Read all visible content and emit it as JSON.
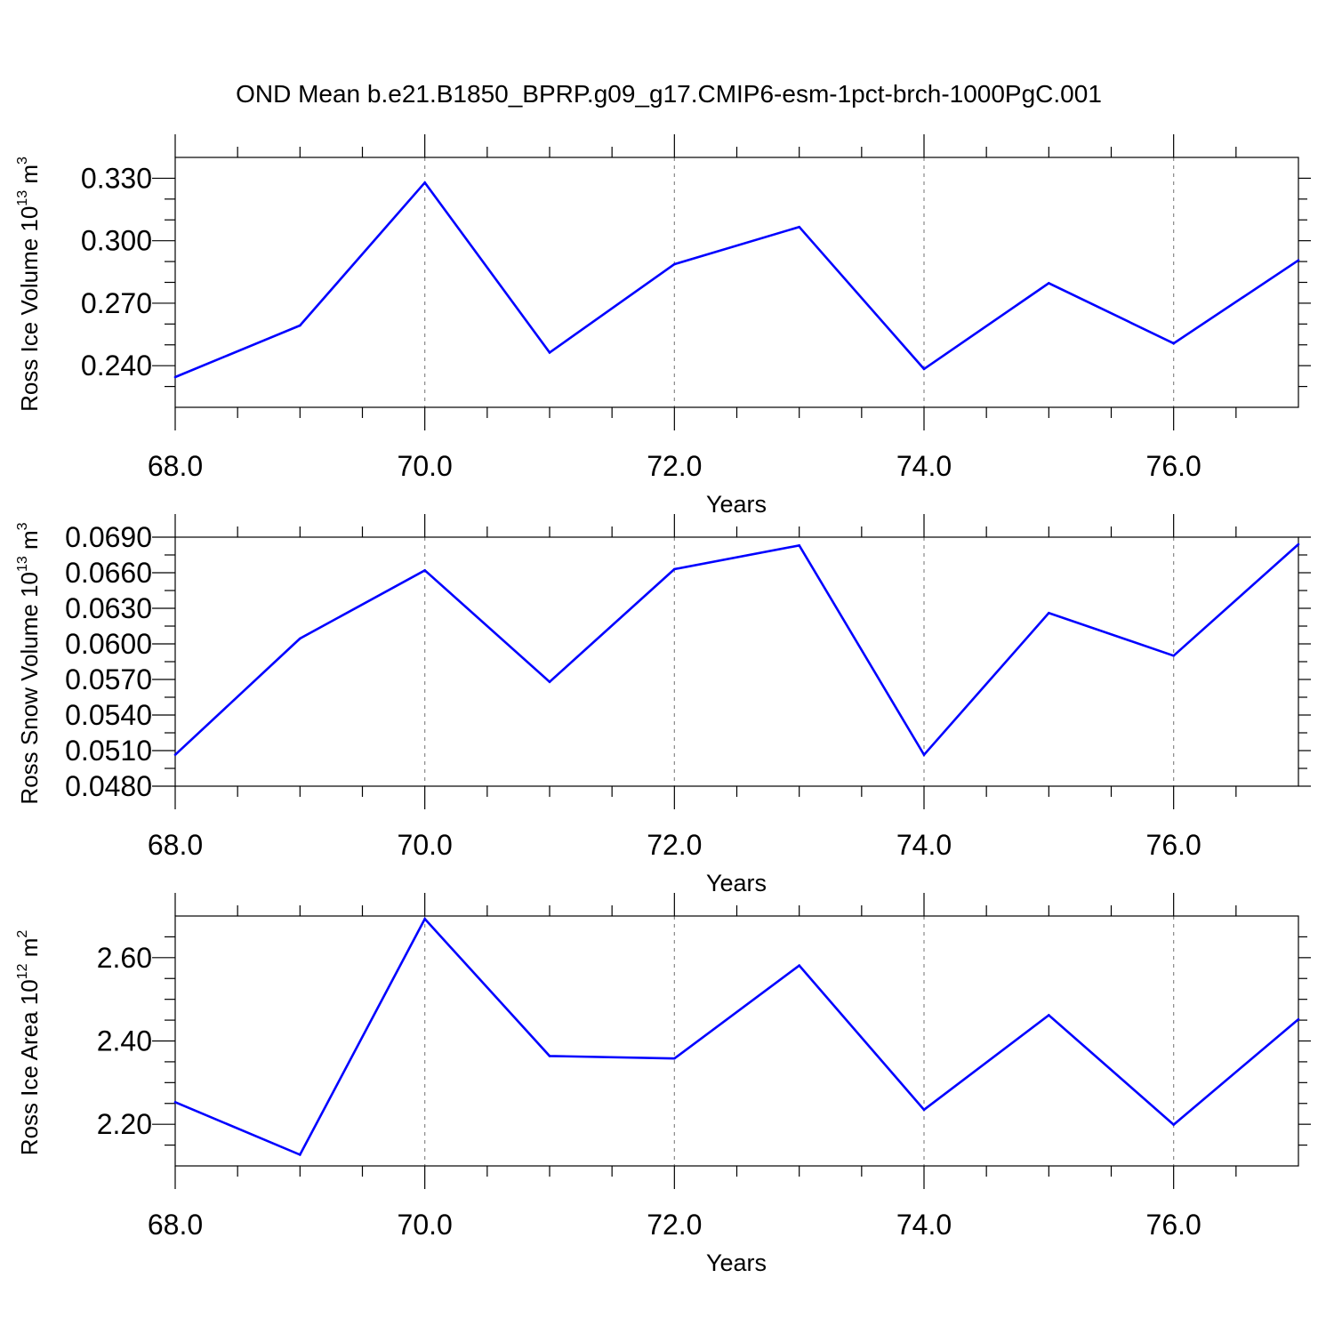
{
  "title": "OND Mean b.e21.B1850_BPRP.g09_g17.CMIP6-esm-1pct-brch-1000PgC.001",
  "colors": {
    "series": "#0000ff",
    "axis": "#000000",
    "grid": "#888888"
  },
  "chart_data": [
    {
      "type": "line",
      "ylabel": "Ross Ice Volume 10",
      "ylabel_exp": "13",
      "ylabel_unit": " m",
      "ylabel_unit_exp": "3",
      "xlabel": "Years",
      "xlim": [
        68,
        77
      ],
      "ylim": [
        0.22,
        0.34
      ],
      "x_ticks": [
        68,
        70,
        72,
        74,
        76
      ],
      "x_tick_labels": [
        "68.0",
        "70.0",
        "72.0",
        "74.0",
        "76.0"
      ],
      "y_ticks": [
        0.24,
        0.27,
        0.3,
        0.33
      ],
      "y_tick_labels": [
        "0.240",
        "0.270",
        "0.300",
        "0.330"
      ],
      "y_minor_step": 0.01,
      "grid": "vertical dashed at major x ticks",
      "x": [
        68,
        69,
        70,
        71,
        72,
        73,
        74,
        75,
        76,
        77
      ],
      "values": [
        0.2345,
        0.2593,
        0.3279,
        0.2463,
        0.2887,
        0.3066,
        0.2384,
        0.2796,
        0.2507,
        0.2906
      ]
    },
    {
      "type": "line",
      "ylabel": "Ross Snow Volume 10",
      "ylabel_exp": "13",
      "ylabel_unit": " m",
      "ylabel_unit_exp": "3",
      "xlabel": "Years",
      "xlim": [
        68,
        77
      ],
      "ylim": [
        0.048,
        0.069
      ],
      "x_ticks": [
        68,
        70,
        72,
        74,
        76
      ],
      "x_tick_labels": [
        "68.0",
        "70.0",
        "72.0",
        "74.0",
        "76.0"
      ],
      "y_ticks": [
        0.048,
        0.051,
        0.054,
        0.057,
        0.06,
        0.063,
        0.066,
        0.069
      ],
      "y_tick_labels": [
        "0.0480",
        "0.0510",
        "0.0540",
        "0.0570",
        "0.0600",
        "0.0630",
        "0.0660",
        "0.0690"
      ],
      "y_minor_step": 0.0015,
      "grid": "vertical dashed at major x ticks",
      "x": [
        68,
        69,
        70,
        71,
        72,
        73,
        74,
        75,
        76,
        77
      ],
      "values": [
        0.05065,
        0.06045,
        0.0662,
        0.0568,
        0.0663,
        0.0683,
        0.05065,
        0.0626,
        0.059,
        0.0684
      ]
    },
    {
      "type": "line",
      "ylabel": "Ross Ice Area 10",
      "ylabel_exp": "12",
      "ylabel_unit": " m",
      "ylabel_unit_exp": "2",
      "xlabel": "Years",
      "xlim": [
        68,
        77
      ],
      "ylim": [
        2.1,
        2.7
      ],
      "x_ticks": [
        68,
        70,
        72,
        74,
        76
      ],
      "x_tick_labels": [
        "68.0",
        "70.0",
        "72.0",
        "74.0",
        "76.0"
      ],
      "y_ticks": [
        2.2,
        2.4,
        2.6
      ],
      "y_tick_labels": [
        "2.20",
        "2.40",
        "2.60"
      ],
      "y_minor_step": 0.05,
      "grid": "vertical dashed at major x ticks",
      "x": [
        68,
        69,
        70,
        71,
        72,
        73,
        74,
        75,
        76,
        77
      ],
      "values": [
        2.253,
        2.127,
        2.693,
        2.364,
        2.358,
        2.581,
        2.235,
        2.462,
        2.199,
        2.452
      ]
    }
  ]
}
